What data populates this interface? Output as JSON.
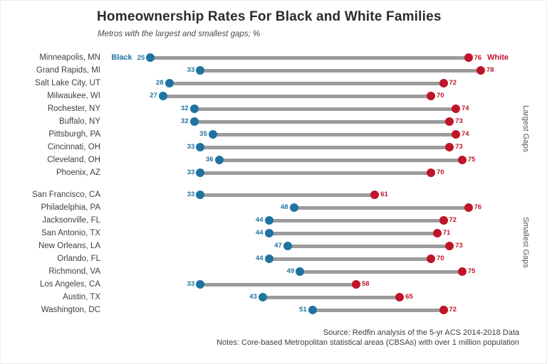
{
  "header": {
    "title": "Homeownership Rates For Black and White Families",
    "subtitle": "Metros with the largest and smallest gaps; %"
  },
  "footer": {
    "source_line": "Source: Redfin analysis of the 5-yr ACS 2014-2018 Data",
    "notes_line": "Notes: Core-based Metropolitan statistical areas (CBSAs) with over 1 million population"
  },
  "chart_data": {
    "type": "dumbbell",
    "title": "Homeownership Rates For Black and White Families",
    "subtitle": "Metros with the largest and smallest gaps; %",
    "unit": "%",
    "x_domain": [
      18,
      82
    ],
    "legend": {
      "black_label": "Black",
      "white_label": "White"
    },
    "colors": {
      "black_series": "#1e73a0",
      "white_series": "#c01428",
      "connector": "#9b9b9b"
    },
    "groups": [
      {
        "label": "Largest Gaps",
        "rows": [
          {
            "metro": "Minneapolis, MN",
            "black": 25,
            "white": 76
          },
          {
            "metro": "Grand Rapids, MI",
            "black": 33,
            "white": 78
          },
          {
            "metro": "Salt Lake City, UT",
            "black": 28,
            "white": 72
          },
          {
            "metro": "Milwaukee, WI",
            "black": 27,
            "white": 70
          },
          {
            "metro": "Rochester, NY",
            "black": 32,
            "white": 74
          },
          {
            "metro": "Buffalo, NY",
            "black": 32,
            "white": 73
          },
          {
            "metro": "Pittsburgh, PA",
            "black": 35,
            "white": 74
          },
          {
            "metro": "Cincinnati, OH",
            "black": 33,
            "white": 73
          },
          {
            "metro": "Cleveland, OH",
            "black": 36,
            "white": 75
          },
          {
            "metro": "Phoenix, AZ",
            "black": 33,
            "white": 70
          }
        ]
      },
      {
        "label": "Smallest Gaps",
        "rows": [
          {
            "metro": "San Francisco, CA",
            "black": 33,
            "white": 61
          },
          {
            "metro": "Philadelphia, PA",
            "black": 48,
            "white": 76
          },
          {
            "metro": "Jacksonville, FL",
            "black": 44,
            "white": 72
          },
          {
            "metro": "San Antonio, TX",
            "black": 44,
            "white": 71
          },
          {
            "metro": "New Orleans, LA",
            "black": 47,
            "white": 73
          },
          {
            "metro": "Orlando, FL",
            "black": 44,
            "white": 70
          },
          {
            "metro": "Richmond, VA",
            "black": 49,
            "white": 75
          },
          {
            "metro": "Los Angeles, CA",
            "black": 33,
            "white": 58
          },
          {
            "metro": "Austin, TX",
            "black": 43,
            "white": 65
          },
          {
            "metro": "Washington, DC",
            "black": 51,
            "white": 72
          }
        ]
      }
    ]
  }
}
